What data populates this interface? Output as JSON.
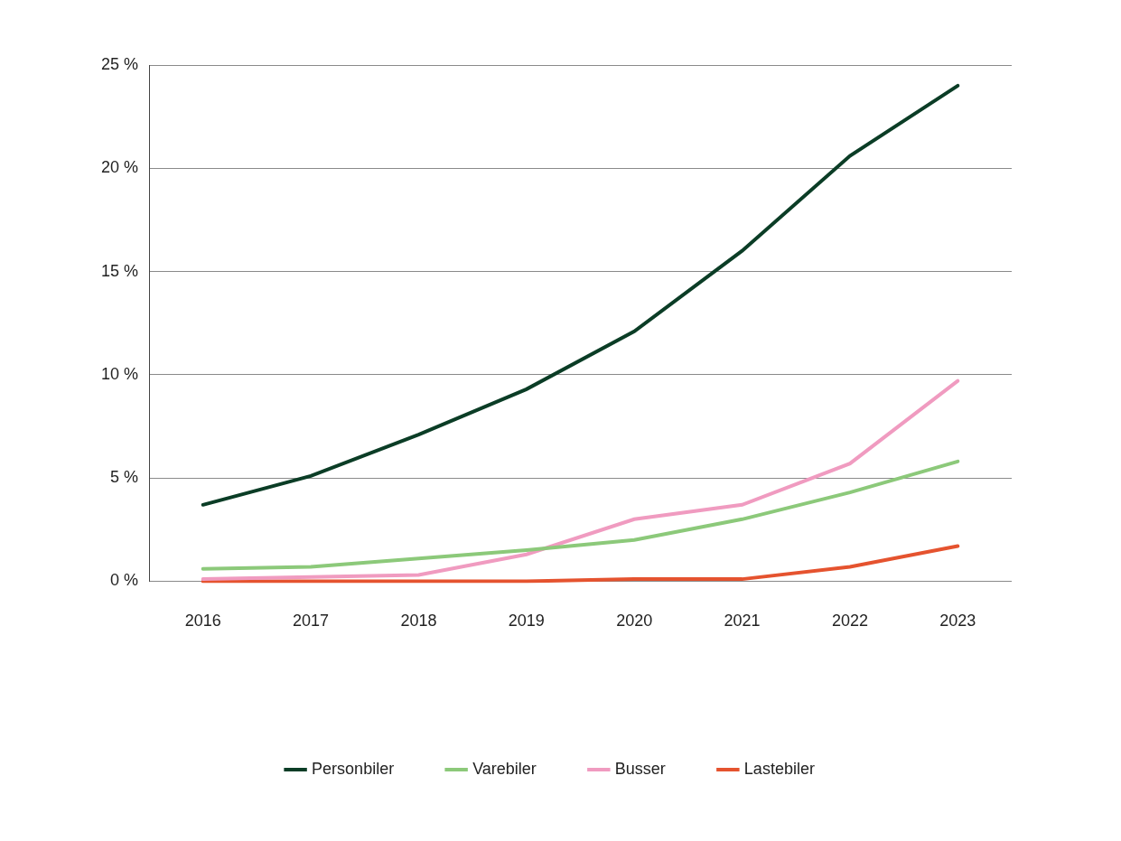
{
  "chart_data": {
    "type": "line",
    "categories": [
      "2016",
      "2017",
      "2018",
      "2019",
      "2020",
      "2021",
      "2022",
      "2023"
    ],
    "series": [
      {
        "name": "Personbiler",
        "color": "#0b3d26",
        "values": [
          3.7,
          5.1,
          7.1,
          9.3,
          12.1,
          16.0,
          20.6,
          24.0
        ]
      },
      {
        "name": "Varebiler",
        "color": "#8cc97a",
        "values": [
          0.6,
          0.7,
          1.1,
          1.5,
          2.0,
          3.0,
          4.3,
          5.8
        ]
      },
      {
        "name": "Busser",
        "color": "#f09bc0",
        "values": [
          0.1,
          0.2,
          0.3,
          1.3,
          3.0,
          3.7,
          5.7,
          9.7
        ]
      },
      {
        "name": "Lastebiler",
        "color": "#e5532f",
        "values": [
          0,
          0,
          0,
          0,
          0.1,
          0.1,
          0.7,
          1.7
        ]
      }
    ],
    "ylim": [
      0,
      25
    ],
    "yticks": [
      {
        "value": 0,
        "label": "0 %"
      },
      {
        "value": 5,
        "label": "5 %"
      },
      {
        "value": 10,
        "label": "10 %"
      },
      {
        "value": 15,
        "label": "15 %"
      },
      {
        "value": 20,
        "label": "20 %"
      },
      {
        "value": 25,
        "label": "25 %"
      }
    ],
    "grid": true,
    "legend": "bottom"
  }
}
